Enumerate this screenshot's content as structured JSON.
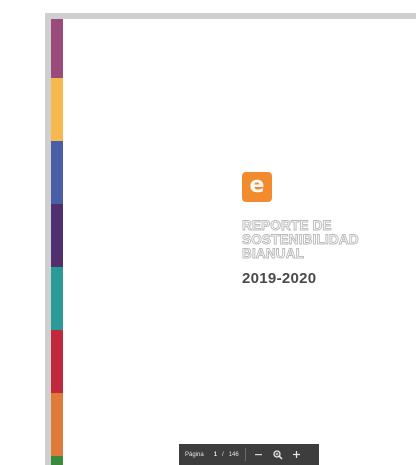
{
  "cover": {
    "logo_letter": "e",
    "title_lines": [
      "REPORTE DE",
      "SOSTENIBILIDAD",
      "BIANUAL"
    ],
    "years": "2019-2020"
  },
  "toolbar": {
    "page_label": "Página",
    "current_page": "1",
    "separator": "/",
    "total_pages": "146"
  },
  "icons": {
    "zoom_out": "minus-icon",
    "zoom_in_magnifier": "zoom-magnifier-icon",
    "zoom_in": "plus-icon"
  },
  "colors": {
    "logo_bg": "#f28a2e",
    "stripes": [
      "#9b4a7c",
      "#f7b84e",
      "#4a5ea8",
      "#4f2f6d",
      "#2a9a96",
      "#c0283c",
      "#e07a3a",
      "#3a8a3e"
    ],
    "toolbar_bg": "#3d3d3d"
  }
}
